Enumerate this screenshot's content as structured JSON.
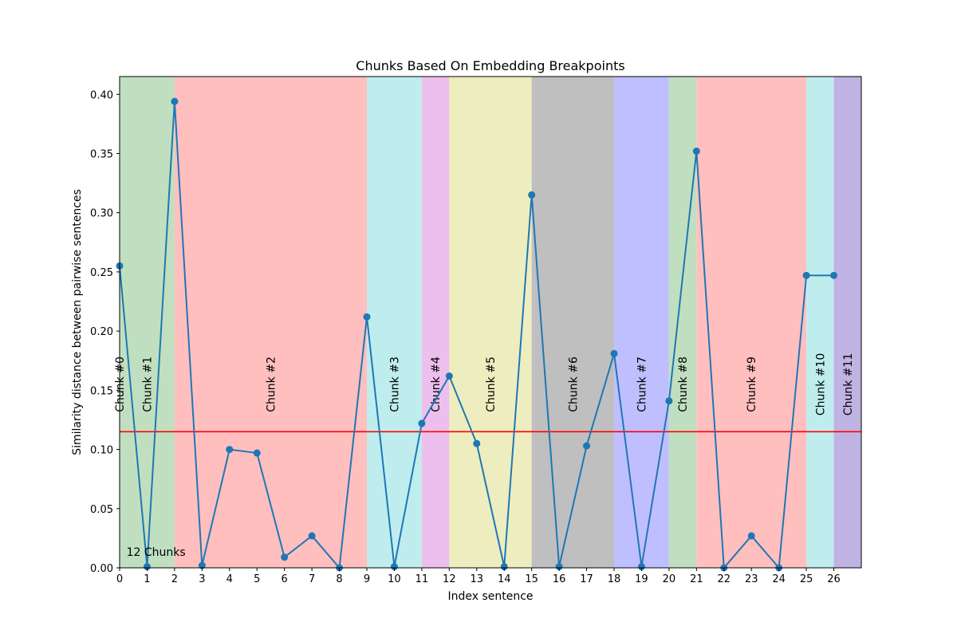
{
  "chart_data": {
    "type": "line",
    "title": "Chunks Based On Embedding Breakpoints",
    "xlabel": "Index sentence",
    "ylabel": "Similarity distance between pairwise sentences",
    "xlim": [
      0,
      27
    ],
    "ylim": [
      0,
      0.415
    ],
    "grid": false,
    "x": [
      0,
      1,
      2,
      3,
      4,
      5,
      6,
      7,
      8,
      9,
      10,
      11,
      12,
      13,
      14,
      15,
      16,
      17,
      18,
      19,
      20,
      21,
      22,
      23,
      24,
      25,
      26
    ],
    "x_ticks": [
      "0",
      "1",
      "2",
      "3",
      "4",
      "5",
      "6",
      "7",
      "8",
      "9",
      "10",
      "11",
      "12",
      "13",
      "14",
      "15",
      "16",
      "17",
      "18",
      "19",
      "20",
      "21",
      "22",
      "23",
      "24",
      "25",
      "26"
    ],
    "y_ticks": [
      "0.00",
      "0.05",
      "0.10",
      "0.15",
      "0.20",
      "0.25",
      "0.30",
      "0.35",
      "0.40"
    ],
    "y_tick_values": [
      0,
      0.05,
      0.1,
      0.15,
      0.2,
      0.25,
      0.3,
      0.35,
      0.4
    ],
    "series": [
      {
        "color": "#1f77b4",
        "marker": "circle",
        "values": [
          0.255,
          0.001,
          0.394,
          0.002,
          0.1,
          0.097,
          0.009,
          0.027,
          0.0,
          0.212,
          0.001,
          0.122,
          0.162,
          0.105,
          0.001,
          0.315,
          0.001,
          0.103,
          0.181,
          0.001,
          0.141,
          0.352,
          0.0,
          0.027,
          0.0,
          0.247,
          0.247
        ]
      }
    ],
    "threshold": {
      "value": 0.115,
      "color": "#ff0000"
    },
    "chunks": [
      {
        "label": "Chunk #0",
        "start": 0,
        "end": 2,
        "color": "#c0dfc0"
      },
      {
        "label": "Chunk #1",
        "start": 0,
        "end": 2,
        "color": "#c0dfc0"
      },
      {
        "label": "Chunk #2",
        "start": 2,
        "end": 9,
        "color": "#ffbfbf"
      },
      {
        "label": "Chunk #3",
        "start": 9,
        "end": 11,
        "color": "#bfeded"
      },
      {
        "label": "Chunk #4",
        "start": 11,
        "end": 12,
        "color": "#edbfed"
      },
      {
        "label": "Chunk #5",
        "start": 12,
        "end": 15,
        "color": "#ededbf"
      },
      {
        "label": "Chunk #6",
        "start": 15,
        "end": 18,
        "color": "#bfbfbf"
      },
      {
        "label": "Chunk #7",
        "start": 18,
        "end": 20,
        "color": "#bfbfff"
      },
      {
        "label": "Chunk #8",
        "start": 20,
        "end": 21,
        "color": "#c0dfc0"
      },
      {
        "label": "Chunk #9",
        "start": 21,
        "end": 25,
        "color": "#ffbfbf"
      },
      {
        "label": "Chunk #10",
        "start": 25,
        "end": 26,
        "color": "#bfeded"
      },
      {
        "label": "Chunk #11",
        "start": 26,
        "end": 27,
        "color": "#bfb3e3"
      }
    ],
    "chunk_label_x": [
      0,
      1,
      5.5,
      10,
      11.5,
      13.5,
      16.5,
      19,
      20.5,
      23,
      25.5,
      26.5
    ],
    "chunk_label_y": 0.155,
    "annotation": {
      "text": "12 Chunks",
      "x": 0.25,
      "y": 0.01
    }
  }
}
